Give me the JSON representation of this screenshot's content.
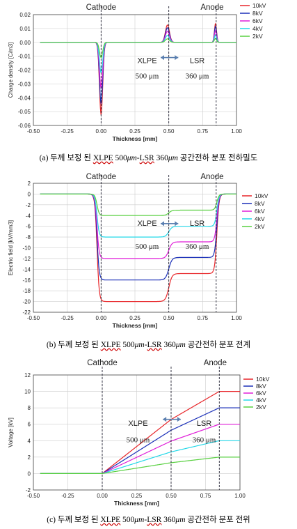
{
  "charts_common": {
    "cathode_label": "Cathode",
    "anode_label": "Anode",
    "xlabel": "Thickness [mm]",
    "x_ticks": [
      "-0.50",
      "-0.25",
      "0.00",
      "0.25",
      "0.50",
      "0.75",
      "1.00"
    ],
    "xlim": [
      -0.5,
      1.0
    ],
    "interfaces": [
      0.0,
      0.5,
      0.85
    ],
    "xlpe_label": "XLPE",
    "xlpe_thick": "500 μm",
    "lsr_label": "LSR",
    "lsr_thick": "360 μm"
  },
  "series_colors": {
    "10kV": "#e8262a",
    "8kV": "#1a2fb8",
    "6kV": "#e01ed8",
    "4kV": "#22d8e8",
    "2kV": "#58d040"
  },
  "captions": [
    {
      "prefix": "(a) 두께 보정 된 ",
      "xlpe": "XLPE",
      "mid": " 500",
      "um1": "μm",
      "dash": "-",
      "lsr": "LSR",
      "mid2": " 360",
      "um2": "μm",
      "suffix": " 공간전하 분포 전하밀도"
    },
    {
      "prefix": "(b) 두께 보정 된 ",
      "xlpe": "XLPE",
      "mid": " 500",
      "um1": "μm",
      "dash": "-",
      "lsr": "LSR",
      "mid2": " 360",
      "um2": "μm",
      "suffix": " 공간전하 분포 전계"
    },
    {
      "prefix": "(c) 두께 보정 된 ",
      "xlpe": "XLPE",
      "mid": " 500",
      "um1": "μm",
      "dash": "-",
      "lsr": "LSR",
      "mid2": " 360",
      "um2": "μm",
      "suffix": " 공간전하 분포 전위"
    }
  ],
  "chart_data": [
    {
      "type": "line",
      "ylabel": "Charge density [C/m3]",
      "ylim": [
        -0.06,
        0.02
      ],
      "y_ticks": [
        "0.02",
        "0.01",
        "0.00",
        "-0.01",
        "-0.02",
        "-0.03",
        "-0.04",
        "-0.05",
        "-0.06"
      ],
      "series": [
        {
          "name": "10kV",
          "cathode_peak": -0.052,
          "anode_peak_1": 0.0125,
          "anode_peak_2": 0.0135
        },
        {
          "name": "8kV",
          "cathode_peak": -0.044,
          "anode_peak_1": 0.0105,
          "anode_peak_2": 0.0115
        },
        {
          "name": "6kV",
          "cathode_peak": -0.033,
          "anode_peak_1": 0.008,
          "anode_peak_2": 0.0085
        },
        {
          "name": "4kV",
          "cathode_peak": -0.022,
          "anode_peak_1": 0.005,
          "anode_peak_2": 0.0055
        },
        {
          "name": "2kV",
          "cathode_peak": -0.011,
          "anode_peak_1": 0.0025,
          "anode_peak_2": 0.0028
        }
      ]
    },
    {
      "type": "line",
      "ylabel": "Electric field [kV/mm3]",
      "ylim": [
        -22,
        2
      ],
      "y_ticks": [
        "2",
        "0",
        "-2",
        "-4",
        "-6",
        "-8",
        "-10",
        "-12",
        "-14",
        "-16",
        "-18",
        "-20",
        "-22"
      ],
      "series": [
        {
          "name": "10kV",
          "xlpe_field": -20,
          "lsr_field": -14.8
        },
        {
          "name": "8kV",
          "xlpe_field": -16,
          "lsr_field": -11.8
        },
        {
          "name": "6kV",
          "xlpe_field": -12,
          "lsr_field": -8.9
        },
        {
          "name": "4kV",
          "xlpe_field": -8,
          "lsr_field": -6
        },
        {
          "name": "2kV",
          "xlpe_field": -4,
          "lsr_field": -3
        }
      ]
    },
    {
      "type": "line",
      "ylabel": "Voltage [kV]",
      "ylim": [
        -2,
        12
      ],
      "y_ticks": [
        "12",
        "10",
        "8",
        "6",
        "4",
        "2",
        "0",
        "-2"
      ],
      "series": [
        {
          "name": "10kV",
          "end_voltage": 10
        },
        {
          "name": "8kV",
          "end_voltage": 8
        },
        {
          "name": "6kV",
          "end_voltage": 6
        },
        {
          "name": "4kV",
          "end_voltage": 4
        },
        {
          "name": "2kV",
          "end_voltage": 2
        }
      ]
    }
  ]
}
